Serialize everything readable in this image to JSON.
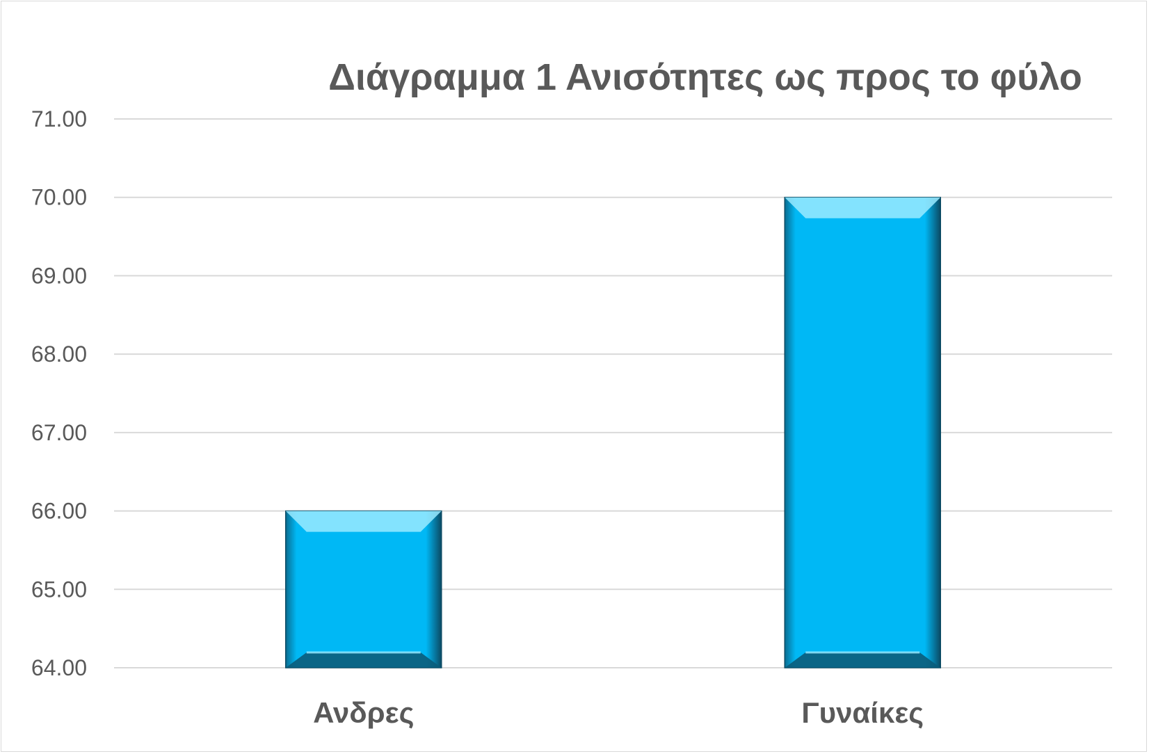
{
  "chart_data": {
    "type": "bar",
    "title": "Διάγραμμα 1 Ανισότητες ως προς το φύλο",
    "xlabel": "",
    "ylabel": "",
    "categories": [
      "Ανδρες",
      "Γυναίκες"
    ],
    "values": [
      66.0,
      70.0
    ],
    "ylim": [
      64,
      71
    ],
    "y_ticks": [
      "64.00",
      "65.00",
      "66.00",
      "67.00",
      "68.00",
      "69.00",
      "70.00",
      "71.00"
    ],
    "grid": true,
    "legend": "none",
    "bar_color": "#00b8f5",
    "bar_shadow_color": "#0b5c7a",
    "bar_highlight_color": "#9aeaff"
  }
}
